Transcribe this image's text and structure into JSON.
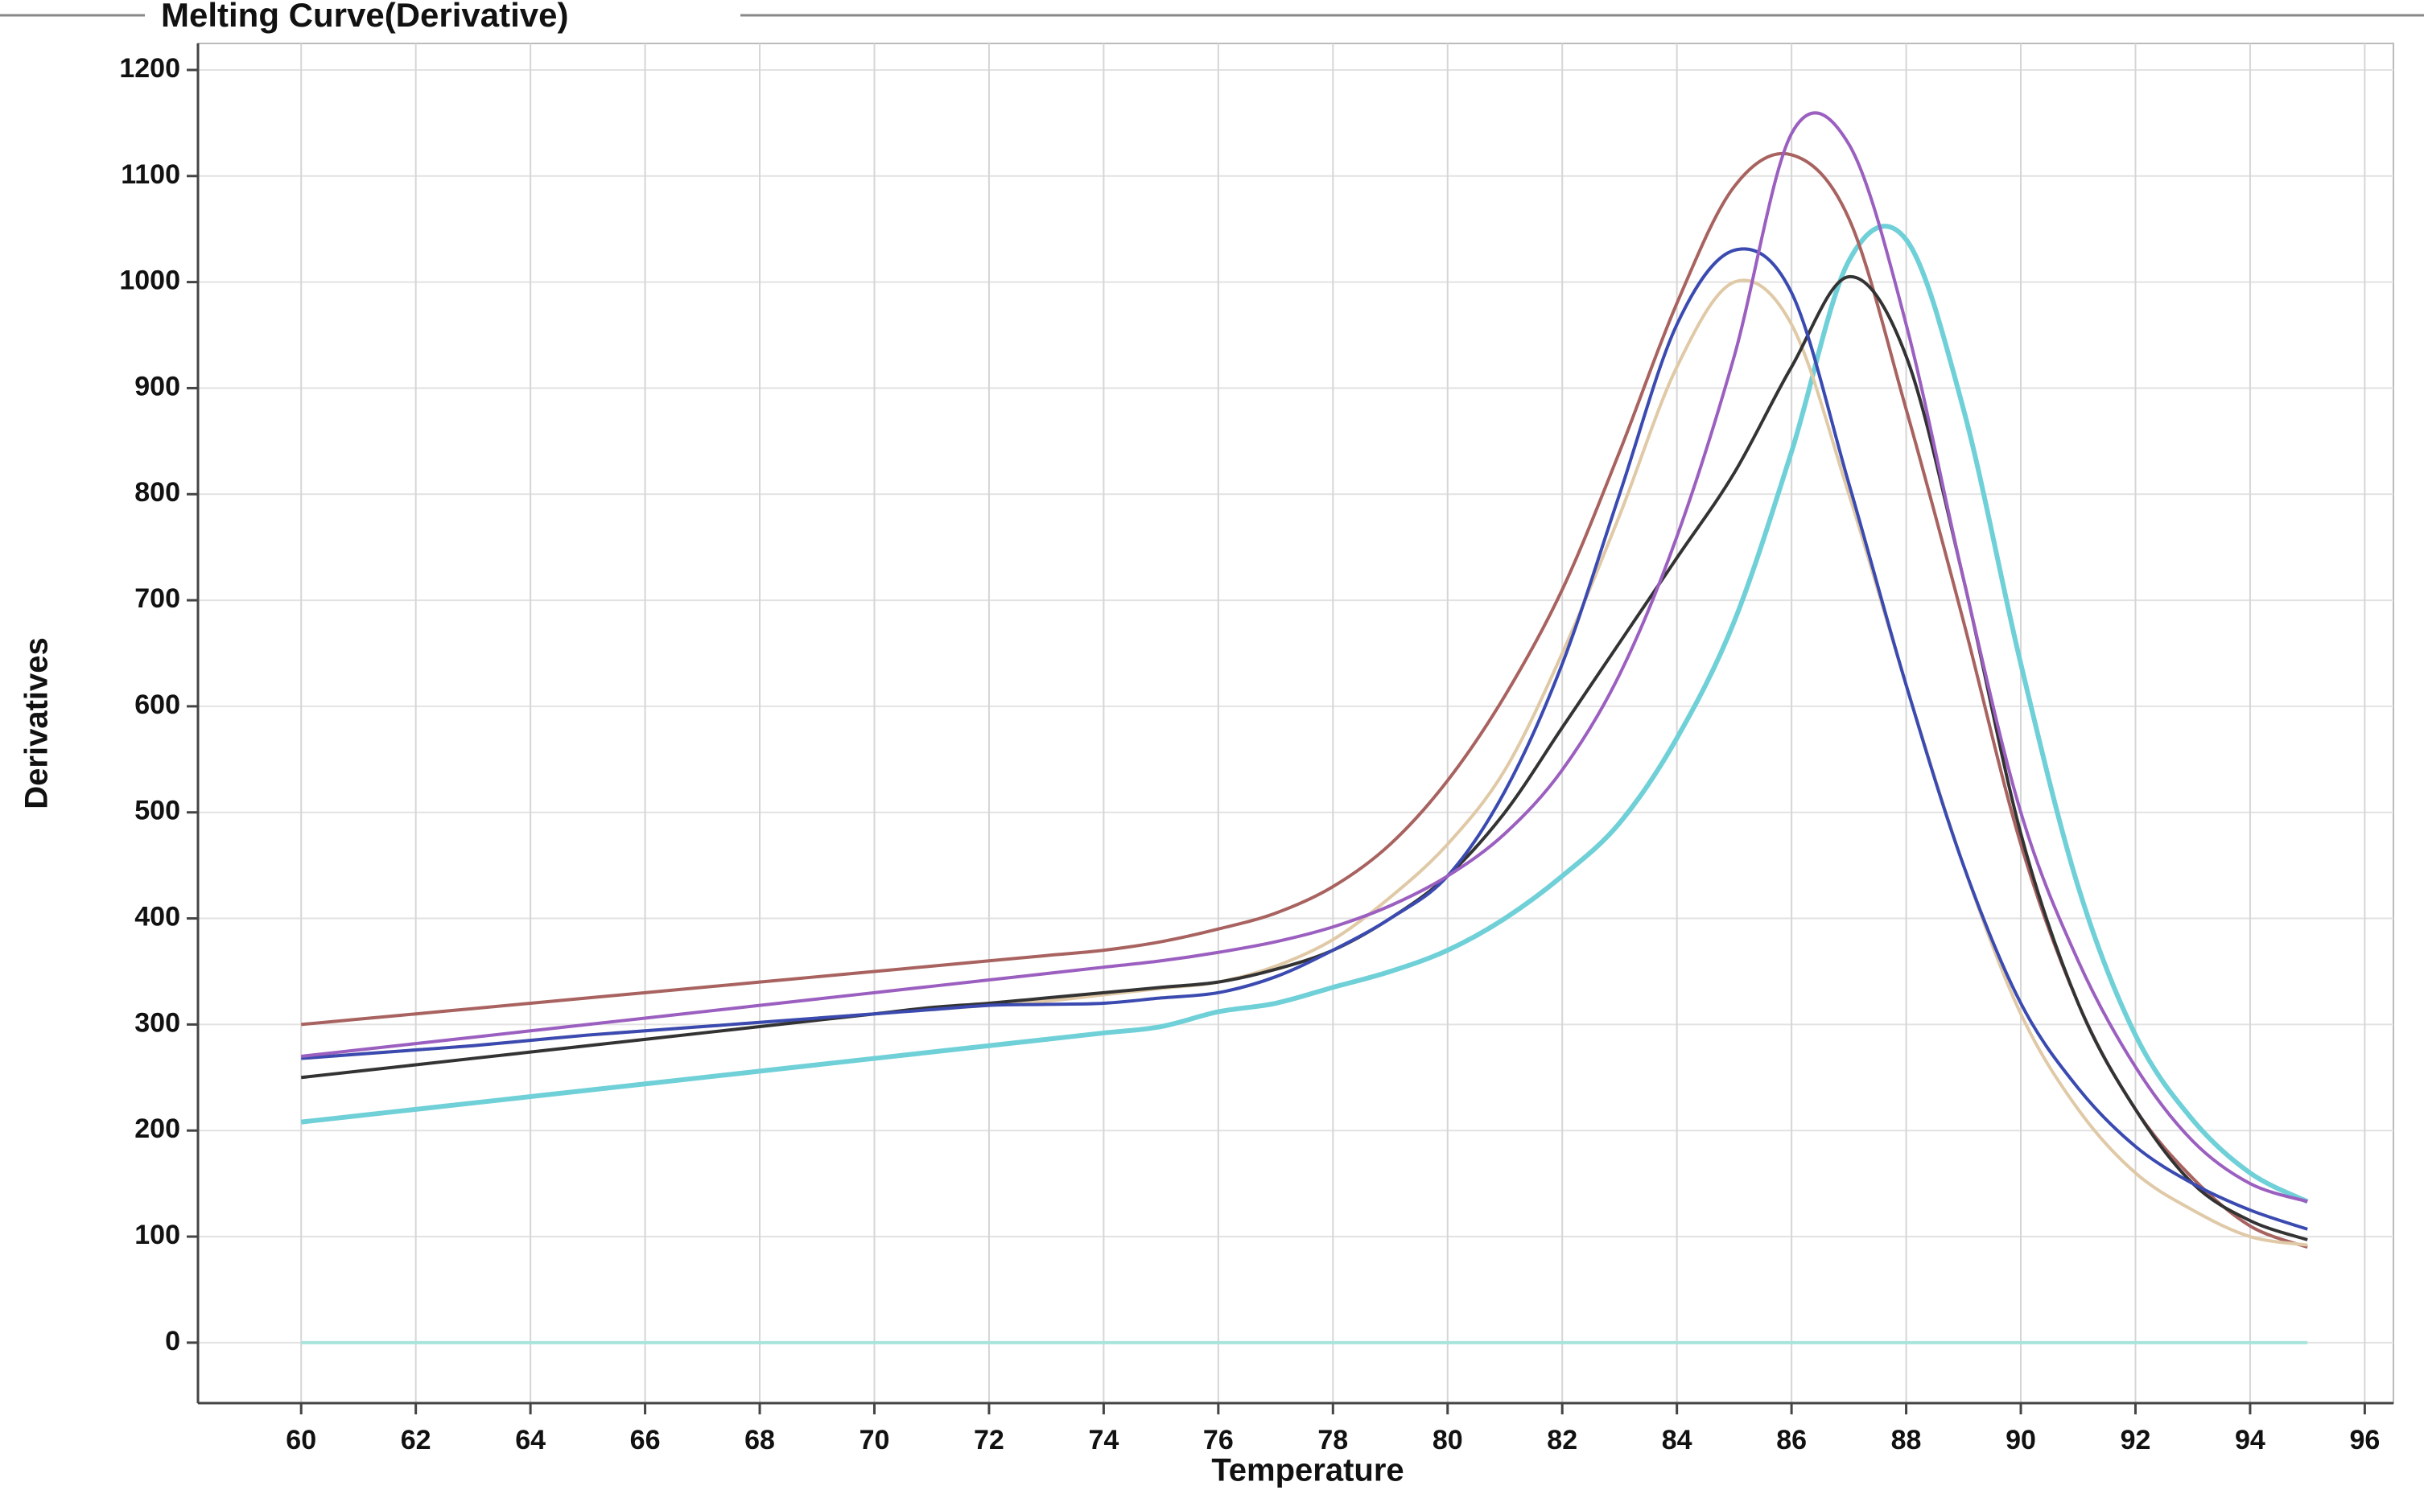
{
  "chart_data": {
    "type": "line",
    "title": "Melting Curve(Derivative)",
    "x_label": "Temperature",
    "y_label": "Derivatives",
    "x": [
      60,
      61,
      62,
      63,
      64,
      65,
      66,
      67,
      68,
      69,
      70,
      71,
      72,
      73,
      74,
      75,
      76,
      77,
      78,
      79,
      80,
      81,
      82,
      83,
      84,
      85,
      86,
      87,
      88,
      89,
      90,
      91,
      92,
      93,
      94,
      95
    ],
    "xlim": [
      58.2,
      96.5
    ],
    "xticks": [
      60,
      62,
      64,
      66,
      68,
      70,
      72,
      74,
      76,
      78,
      80,
      82,
      84,
      86,
      88,
      90,
      92,
      94,
      96
    ],
    "ylim": [
      -57,
      1225
    ],
    "yticks": [
      0,
      100,
      200,
      300,
      400,
      500,
      600,
      700,
      800,
      900,
      1000,
      1100,
      1200
    ],
    "grid": true,
    "series": [
      {
        "color": "#a8e4dc",
        "values": [
          0,
          0,
          0,
          0,
          0,
          0,
          0,
          0,
          0,
          0,
          0,
          0,
          0,
          0,
          0,
          0,
          0,
          0,
          0,
          0,
          0,
          0,
          0,
          0,
          0,
          0,
          0,
          0,
          0,
          0,
          0,
          0,
          0,
          0,
          0,
          0
        ]
      },
      {
        "color": "#6fd0d8",
        "values": [
          208,
          214,
          220,
          226,
          232,
          238,
          244,
          250,
          256,
          262,
          268,
          274,
          280,
          286,
          292,
          298,
          312,
          320,
          335,
          350,
          370,
          400,
          440,
          490,
          570,
          680,
          840,
          1020,
          1040,
          880,
          640,
          430,
          290,
          210,
          160,
          133
        ]
      },
      {
        "color": "#a8625f",
        "values": [
          300,
          305,
          310,
          315,
          320,
          325,
          330,
          335,
          340,
          345,
          350,
          355,
          360,
          365,
          370,
          378,
          390,
          405,
          430,
          470,
          530,
          610,
          710,
          840,
          980,
          1090,
          1120,
          1060,
          880,
          680,
          470,
          320,
          220,
          155,
          110,
          90
        ]
      },
      {
        "color": "#e0c9a6",
        "values": [
          268,
          272,
          276,
          280,
          285,
          290,
          294,
          298,
          302,
          306,
          310,
          314,
          318,
          322,
          328,
          334,
          340,
          355,
          380,
          420,
          470,
          540,
          650,
          780,
          920,
          1000,
          960,
          800,
          620,
          450,
          310,
          220,
          160,
          125,
          100,
          92
        ]
      },
      {
        "color": "#333333",
        "values": [
          250,
          256,
          262,
          268,
          274,
          280,
          286,
          292,
          298,
          304,
          310,
          316,
          320,
          325,
          330,
          335,
          340,
          352,
          370,
          400,
          440,
          500,
          580,
          660,
          740,
          820,
          920,
          1005,
          930,
          720,
          480,
          320,
          220,
          150,
          115,
          97
        ]
      },
      {
        "color": "#3a4ab0",
        "values": [
          268,
          272,
          276,
          280,
          285,
          290,
          294,
          298,
          302,
          306,
          310,
          314,
          318,
          319,
          320,
          325,
          330,
          345,
          370,
          400,
          440,
          520,
          640,
          800,
          960,
          1030,
          990,
          810,
          620,
          450,
          320,
          240,
          185,
          150,
          125,
          107
        ]
      },
      {
        "color": "#9b5fc0",
        "values": [
          270,
          276,
          282,
          288,
          294,
          300,
          306,
          312,
          318,
          324,
          330,
          336,
          342,
          348,
          354,
          360,
          368,
          378,
          392,
          412,
          440,
          480,
          540,
          630,
          760,
          930,
          1140,
          1130,
          960,
          720,
          500,
          360,
          260,
          190,
          150,
          133
        ]
      }
    ]
  }
}
